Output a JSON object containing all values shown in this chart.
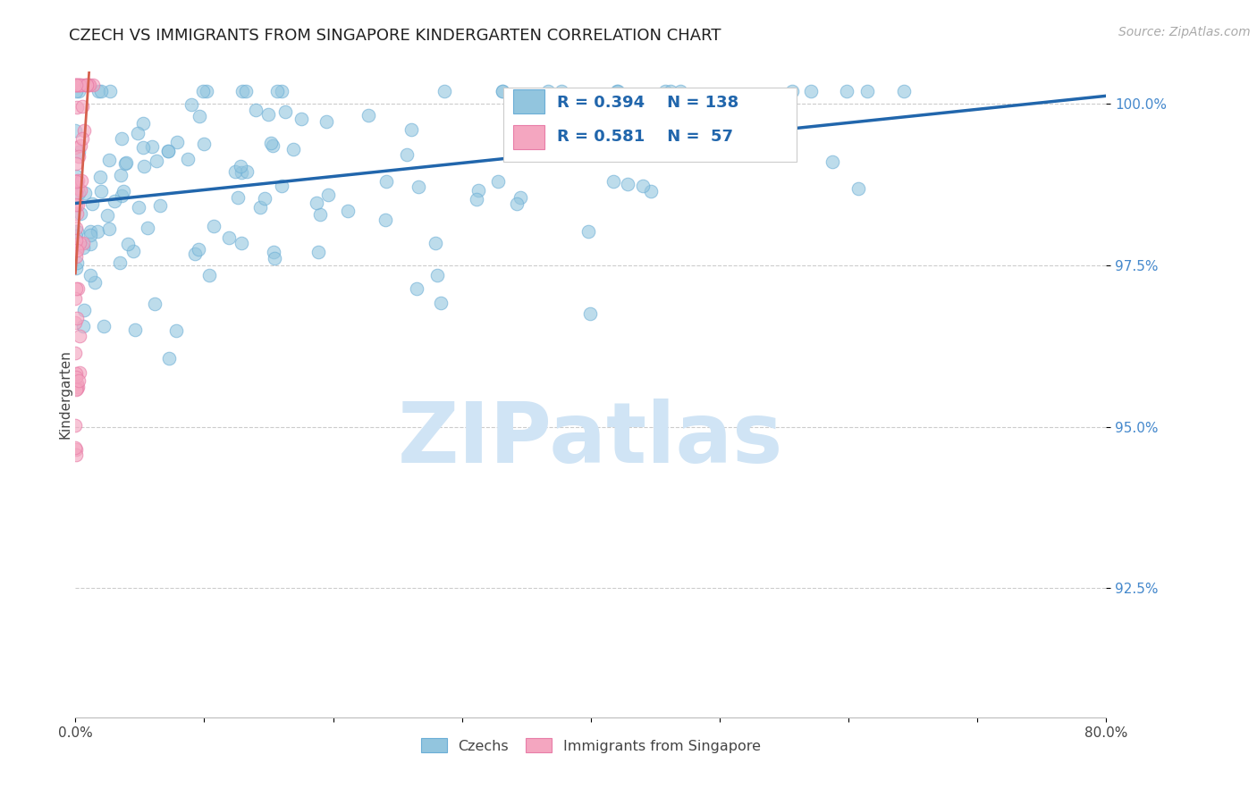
{
  "title": "CZECH VS IMMIGRANTS FROM SINGAPORE KINDERGARTEN CORRELATION CHART",
  "source_text": "Source: ZipAtlas.com",
  "ylabel": "Kindergarten",
  "xlim": [
    0.0,
    0.8
  ],
  "ylim": [
    0.905,
    1.005
  ],
  "ytick_labels": [
    "92.5%",
    "95.0%",
    "97.5%",
    "100.0%"
  ],
  "ytick_positions": [
    0.925,
    0.95,
    0.975,
    1.0
  ],
  "blue_color": "#92c5de",
  "pink_color": "#f4a6c0",
  "blue_edge_color": "#6baed6",
  "pink_edge_color": "#e87da8",
  "blue_line_color": "#2166ac",
  "pink_line_color": "#d6604d",
  "legend_text_color": "#2166ac",
  "legend_R_blue": "R = 0.394",
  "legend_N_blue": "N = 138",
  "legend_R_pink": "R = 0.581",
  "legend_N_pink": "N =  57",
  "watermark": "ZIPatlas",
  "watermark_color": "#d0e4f5",
  "title_fontsize": 13,
  "axis_label_fontsize": 11,
  "tick_fontsize": 11,
  "source_fontsize": 10
}
